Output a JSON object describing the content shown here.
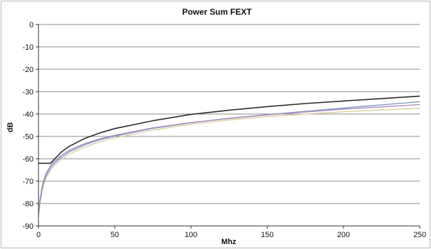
{
  "chart_data": {
    "type": "line",
    "title": "Power Sum FEXT",
    "xlabel": "Mhz",
    "ylabel": "dB",
    "xlim": [
      0,
      250
    ],
    "ylim": [
      -90,
      0
    ],
    "x_ticks": [
      0,
      50,
      100,
      150,
      200,
      250
    ],
    "y_ticks": [
      0,
      -10,
      -20,
      -30,
      -40,
      -50,
      -60,
      -70,
      -80,
      -90
    ],
    "grid": "horizontal",
    "legend": "none",
    "series": [
      {
        "color": "#2b2b2b",
        "x": [
          0,
          8,
          10,
          15,
          20,
          30,
          40,
          50,
          75,
          100,
          125,
          150,
          175,
          200,
          225,
          250
        ],
        "y": [
          -62,
          -62,
          -60.5,
          -57,
          -54.5,
          -51,
          -48.5,
          -46.5,
          -43,
          -40.2,
          -38.3,
          -36.7,
          -35.3,
          -34.2,
          -33.1,
          -32
        ]
      },
      {
        "color": "#b08ab8",
        "x": [
          0,
          1,
          2,
          3,
          5,
          8,
          10,
          15,
          20,
          30,
          40,
          50,
          75,
          100,
          125,
          150,
          175,
          200,
          225,
          250
        ],
        "y": [
          -84,
          -78,
          -74,
          -70.5,
          -66.5,
          -63,
          -61.5,
          -58.5,
          -56.3,
          -53.3,
          -51.2,
          -49.5,
          -46.2,
          -43.8,
          -42,
          -40.4,
          -39.1,
          -37.8,
          -36.8,
          -35.8
        ]
      },
      {
        "color": "#7b9cc8",
        "x": [
          0,
          1,
          2,
          3,
          5,
          8,
          10,
          15,
          20,
          30,
          40,
          50,
          75,
          100,
          125,
          150,
          175,
          200,
          225,
          250
        ],
        "y": [
          -85,
          -79,
          -75,
          -71.5,
          -67.5,
          -64,
          -62.3,
          -59.3,
          -57,
          -53.8,
          -51.6,
          -49.9,
          -46.4,
          -43.9,
          -41.9,
          -40.3,
          -38.8,
          -37.3,
          -35.9,
          -34.5
        ]
      },
      {
        "color": "#d8d0a0",
        "x": [
          0,
          1,
          2,
          3,
          5,
          8,
          10,
          15,
          20,
          30,
          40,
          50,
          75,
          100,
          125,
          150,
          175,
          200,
          225,
          250
        ],
        "y": [
          -86,
          -80,
          -76,
          -72.5,
          -68.5,
          -65,
          -63.2,
          -60.3,
          -58,
          -54.8,
          -52.5,
          -50.7,
          -47.2,
          -44.6,
          -42.7,
          -41.2,
          -40,
          -39,
          -38.2,
          -37.5
        ]
      }
    ]
  }
}
